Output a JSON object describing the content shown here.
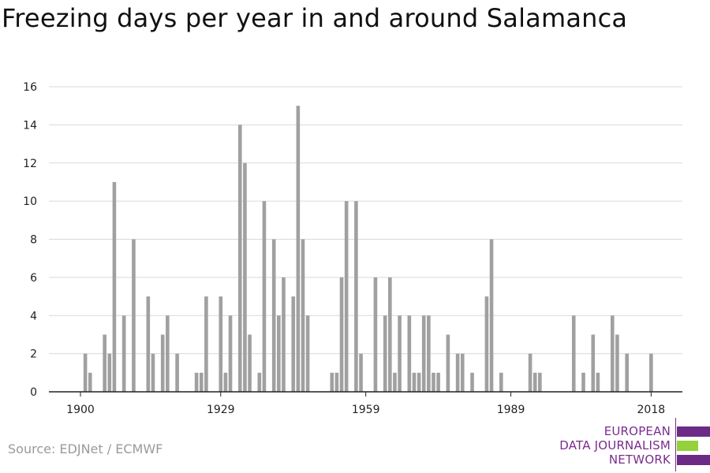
{
  "title": "Freezing days per year in and around Salamanca",
  "source": "Source: EDJNet / ECMWF",
  "logo": {
    "line1": "EUROPEAN",
    "line2": "DATA JOURNALISM",
    "line3": "NETWORK",
    "colors": {
      "purple": "#6c2a86",
      "green": "#94d13a"
    }
  },
  "colors": {
    "bar": "#a0a0a0",
    "grid": "#d9d9d9",
    "axis": "#222222"
  },
  "chart_data": {
    "type": "bar",
    "title": "Freezing days per year in and around Salamanca",
    "xlabel": "",
    "ylabel": "",
    "ylim": [
      0,
      16
    ],
    "yticks": [
      0,
      2,
      4,
      6,
      8,
      10,
      12,
      14,
      16
    ],
    "xticks": [
      1900,
      1929,
      1959,
      1989,
      2018
    ],
    "grid": true,
    "x": [
      1900,
      1901,
      1902,
      1903,
      1904,
      1905,
      1906,
      1907,
      1908,
      1909,
      1910,
      1911,
      1912,
      1913,
      1914,
      1915,
      1916,
      1917,
      1918,
      1919,
      1920,
      1921,
      1922,
      1923,
      1924,
      1925,
      1926,
      1927,
      1928,
      1929,
      1930,
      1931,
      1932,
      1933,
      1934,
      1935,
      1936,
      1937,
      1938,
      1939,
      1940,
      1941,
      1942,
      1943,
      1944,
      1945,
      1946,
      1947,
      1948,
      1949,
      1950,
      1951,
      1952,
      1953,
      1954,
      1955,
      1956,
      1957,
      1958,
      1959,
      1960,
      1961,
      1962,
      1963,
      1964,
      1965,
      1966,
      1967,
      1968,
      1969,
      1970,
      1971,
      1972,
      1973,
      1974,
      1975,
      1976,
      1977,
      1978,
      1979,
      1980,
      1981,
      1982,
      1983,
      1984,
      1985,
      1986,
      1987,
      1988,
      1989,
      1990,
      1991,
      1992,
      1993,
      1994,
      1995,
      1996,
      1997,
      1998,
      1999,
      2000,
      2001,
      2002,
      2003,
      2004,
      2005,
      2006,
      2007,
      2008,
      2009,
      2010,
      2011,
      2012,
      2013,
      2014,
      2015,
      2016,
      2017,
      2018,
      2019,
      2020
    ],
    "values": [
      0,
      2,
      1,
      0,
      0,
      3,
      2,
      11,
      0,
      4,
      0,
      8,
      0,
      0,
      5,
      2,
      0,
      3,
      4,
      0,
      2,
      0,
      0,
      0,
      1,
      1,
      5,
      0,
      0,
      5,
      1,
      4,
      0,
      14,
      12,
      3,
      0,
      1,
      10,
      0,
      8,
      4,
      6,
      0,
      5,
      15,
      8,
      4,
      0,
      0,
      0,
      0,
      1,
      1,
      6,
      10,
      0,
      10,
      2,
      0,
      0,
      6,
      0,
      4,
      6,
      1,
      4,
      0,
      4,
      1,
      1,
      4,
      4,
      1,
      1,
      0,
      3,
      0,
      2,
      2,
      0,
      1,
      0,
      0,
      5,
      8,
      0,
      1,
      0,
      0,
      0,
      0,
      0,
      2,
      1,
      1,
      0,
      0,
      0,
      0,
      0,
      0,
      4,
      0,
      1,
      0,
      3,
      1,
      0,
      0,
      4,
      3,
      0,
      2,
      0,
      0,
      0,
      0,
      2,
      0,
      0
    ]
  }
}
